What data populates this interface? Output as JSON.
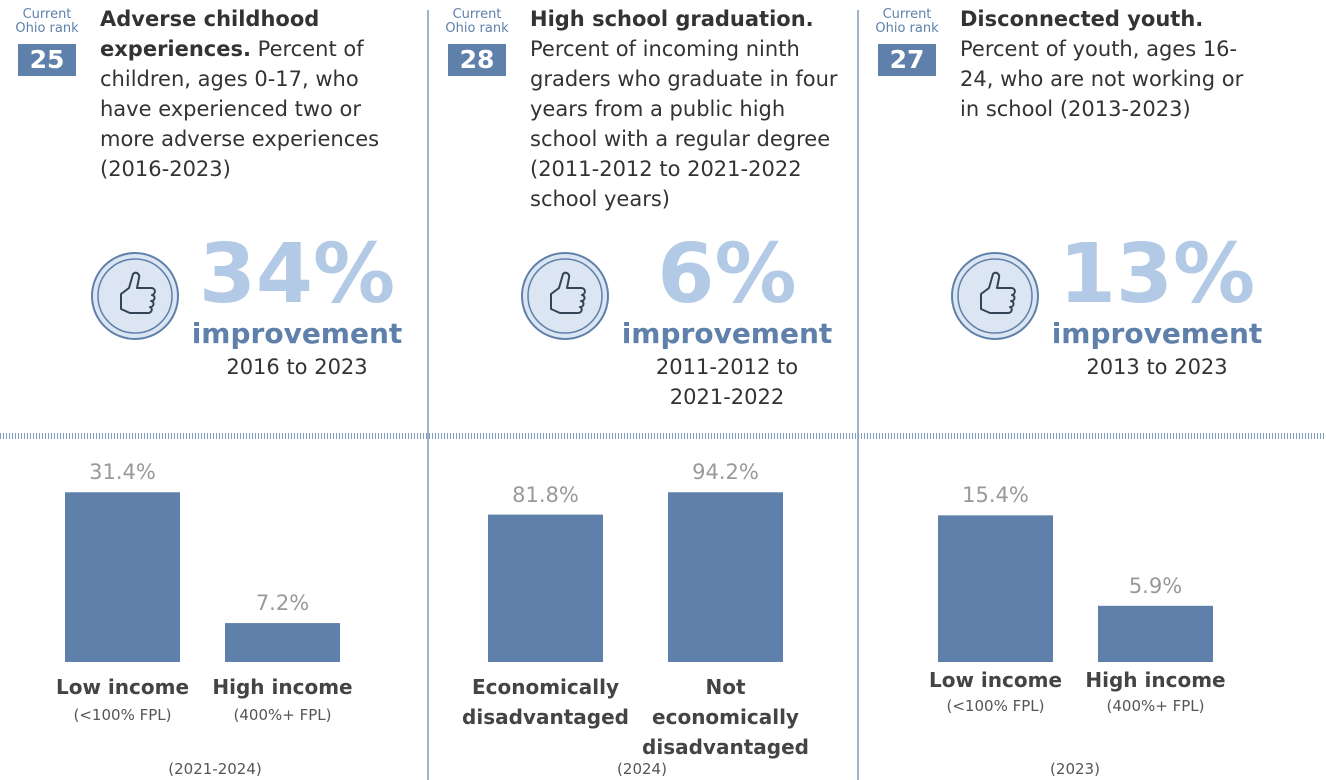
{
  "panels": [
    {
      "rank_label": "Current Ohio rank",
      "rank": 25,
      "title": "Adverse childhood experiences.",
      "description": "Percent of children, ages 0-17, who have experienced two or more adverse experiences (2016-2023)",
      "improvement": {
        "value": 34,
        "value_label": "34%",
        "word": "improvement",
        "period": "2016 to 2023"
      },
      "chart_data": {
        "type": "bar",
        "categories": [
          "Low income",
          "High income"
        ],
        "subcategories": [
          "(<100% FPL)",
          "(400%+ FPL)"
        ],
        "values": [
          31.4,
          7.2
        ],
        "value_labels": [
          "31.4%",
          "7.2%"
        ],
        "ylim": [
          0,
          37
        ],
        "color": "#5f80aa",
        "note": "(2021-2024)"
      }
    },
    {
      "rank_label": "Current Ohio rank",
      "rank": 28,
      "title": "High school graduation.",
      "description": "Percent of incoming ninth graders who graduate in four years from a public high school with a regular degree (2011-2012 to 2021-2022 school years)",
      "improvement": {
        "value": 6,
        "value_label": "6%",
        "word": "improvement",
        "period": "2011-2012 to 2021-2022"
      },
      "chart_data": {
        "type": "bar",
        "categories": [
          "Economically disadvantaged",
          "Not economically disadvantaged"
        ],
        "values": [
          81.8,
          94.2
        ],
        "value_labels": [
          "81.8%",
          "94.2%"
        ],
        "ylim": [
          0,
          111
        ],
        "color": "#5f80aa",
        "note": "(2024)"
      }
    },
    {
      "rank_label": "Current Ohio rank",
      "rank": 27,
      "title": "Disconnected youth.",
      "description": "Percent of youth, ages 16-24, who are not working or in school (2013-2023)",
      "improvement": {
        "value": 13,
        "value_label": "13%",
        "word": "improvement",
        "period": "2013 to 2023"
      },
      "chart_data": {
        "type": "bar",
        "categories": [
          "Low income",
          "High income"
        ],
        "subcategories": [
          "(<100% FPL)",
          "(400%+ FPL)"
        ],
        "values": [
          15.4,
          5.9
        ],
        "value_labels": [
          "15.4%",
          "5.9%"
        ],
        "ylim": [
          0,
          21
        ],
        "color": "#5f80aa",
        "note": "(2023)"
      }
    }
  ]
}
